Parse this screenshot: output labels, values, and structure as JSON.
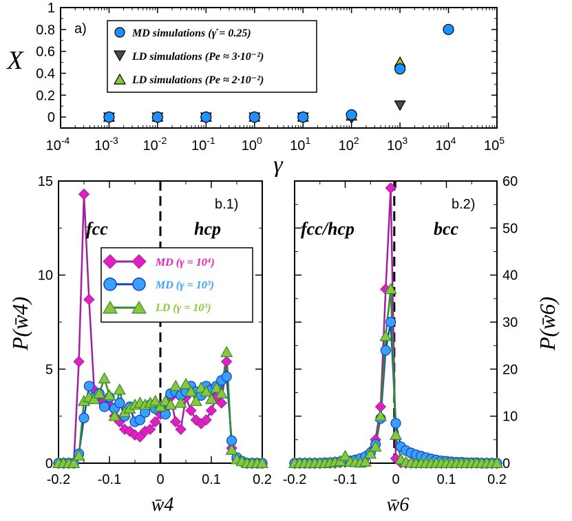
{
  "chart_data": [
    {
      "type": "scatter",
      "panel_label": "a)",
      "ylabel": "X",
      "xlabel": "γ",
      "xscale": "log",
      "xlim": [
        0.0001,
        100000
      ],
      "ylim": [
        -0.1,
        1
      ],
      "yticks": [
        "0",
        "0.2",
        "0.4",
        "0.6",
        "0.8",
        "1"
      ],
      "xticks": [
        {
          "base": "10",
          "exp": "-4"
        },
        {
          "base": "10",
          "exp": "-3"
        },
        {
          "base": "10",
          "exp": "-2"
        },
        {
          "base": "10",
          "exp": "-1"
        },
        {
          "base": "10",
          "exp": "0"
        },
        {
          "base": "10",
          "exp": "1"
        },
        {
          "base": "10",
          "exp": "2"
        },
        {
          "base": "10",
          "exp": "3"
        },
        {
          "base": "10",
          "exp": "4"
        },
        {
          "base": "10",
          "exp": "5"
        }
      ],
      "legend_position": "top-left",
      "series": [
        {
          "name": "MD simulations (γ̇ = 0.25)",
          "marker": "circle",
          "color": "#1e90ff",
          "x": [
            0.001,
            0.01,
            0.1,
            1,
            10,
            100,
            1000,
            10000
          ],
          "y": [
            0,
            0,
            0,
            0,
            0,
            0.02,
            0.44,
            0.8
          ]
        },
        {
          "name": "LD simulations (Pe ≈ 3·10⁻²)",
          "marker": "triangle-down",
          "color": "#4a4a4a",
          "x": [
            0.001,
            0.01,
            0.1,
            1,
            10,
            100,
            1000
          ],
          "y": [
            0,
            0,
            0,
            0,
            0,
            -0.01,
            0.11
          ]
        },
        {
          "name": "LD simulations (Pe ≈ 2·10⁻²)",
          "marker": "triangle-up",
          "color": "#8cc63f",
          "x": [
            0.001,
            0.01,
            0.1,
            1,
            10,
            100,
            1000
          ],
          "y": [
            0,
            0,
            0,
            0,
            0,
            0.01,
            0.5
          ]
        }
      ]
    },
    {
      "type": "line",
      "panel_label": "b.1)",
      "xlabel": "w̄4",
      "ylabel": "P(w̄4)",
      "xlim": [
        -0.2,
        0.2
      ],
      "ylim": [
        0,
        15
      ],
      "xticks": [
        "-0.2",
        "-0.1",
        "0",
        "0.1",
        "0.2"
      ],
      "yticks": [
        "0",
        "5",
        "10",
        "15"
      ],
      "regions": [
        "fcc",
        "hcp"
      ],
      "divider_x": 0,
      "legend_position": "center-left",
      "x": [
        -0.2,
        -0.19,
        -0.18,
        -0.17,
        -0.16,
        -0.15,
        -0.14,
        -0.13,
        -0.12,
        -0.11,
        -0.1,
        -0.09,
        -0.08,
        -0.07,
        -0.06,
        -0.05,
        -0.04,
        -0.03,
        -0.02,
        -0.01,
        0,
        0.01,
        0.02,
        0.03,
        0.04,
        0.05,
        0.06,
        0.07,
        0.08,
        0.09,
        0.1,
        0.11,
        0.12,
        0.13,
        0.14,
        0.15,
        0.16,
        0.17,
        0.18,
        0.19,
        0.2
      ],
      "series": [
        {
          "name": "MD (γ = 10⁴)",
          "marker": "diamond",
          "color": "#e020c0",
          "values": [
            0,
            0,
            0,
            0,
            5.4,
            14.3,
            8.7,
            3.9,
            3.4,
            3.3,
            3.1,
            2.5,
            2.2,
            1.8,
            1.7,
            1.5,
            1.4,
            1.7,
            1.8,
            2.2,
            2.6,
            2.9,
            3.5,
            2.2,
            1.8,
            3.5,
            2.8,
            2.3,
            2.1,
            2.3,
            2.8,
            3.5,
            3.2,
            5.4,
            0.8,
            0.2,
            0.1,
            0,
            0,
            0,
            0
          ]
        },
        {
          "name": "MD (γ = 10³)",
          "marker": "circle",
          "color": "#3aa0ff",
          "values": [
            0,
            0,
            0,
            0,
            0.5,
            2.4,
            4.1,
            3.5,
            3.7,
            3.0,
            3.5,
            2.9,
            3.2,
            2.5,
            3.0,
            2.2,
            2.3,
            2.7,
            3.1,
            2.9,
            3.0,
            2.6,
            3.7,
            3.8,
            3.6,
            3.8,
            4.1,
            3.8,
            3.6,
            4.1,
            3.9,
            4.1,
            4.4,
            4.6,
            1.2,
            0.3,
            0.1,
            0,
            0,
            0,
            0
          ]
        },
        {
          "name": "LD (γ = 10³)",
          "marker": "triangle-up",
          "color": "#8cc63f",
          "values": [
            0,
            0,
            0,
            0,
            0.4,
            3.3,
            3.5,
            3.4,
            3.7,
            4.5,
            3.6,
            2.5,
            3.9,
            2.7,
            2.9,
            3.1,
            3.2,
            3.1,
            3.2,
            3.3,
            3.0,
            3.3,
            3.1,
            4.1,
            3.2,
            4.2,
            3.8,
            3.3,
            4.0,
            3.8,
            3.4,
            4.0,
            3.7,
            5.9,
            0.7,
            0.2,
            0.1,
            0,
            0,
            0,
            0
          ]
        }
      ]
    },
    {
      "type": "line",
      "panel_label": "b.2)",
      "xlabel": "w̄6",
      "ylabel": "P(w̄6)",
      "xlim": [
        -0.2,
        0.2
      ],
      "ylim": [
        0,
        60
      ],
      "xticks": [
        "-0.2",
        "-0.1",
        "0",
        "0.1",
        "0.2"
      ],
      "yticks": [
        "0",
        "10",
        "20",
        "30",
        "40",
        "50",
        "60"
      ],
      "regions": [
        "fcc/hcp",
        "bcc"
      ],
      "divider_x": -0.003,
      "x": [
        -0.2,
        -0.19,
        -0.18,
        -0.17,
        -0.16,
        -0.15,
        -0.14,
        -0.13,
        -0.12,
        -0.11,
        -0.1,
        -0.09,
        -0.08,
        -0.07,
        -0.06,
        -0.05,
        -0.04,
        -0.03,
        -0.02,
        -0.01,
        0,
        0.01,
        0.02,
        0.03,
        0.04,
        0.05,
        0.06,
        0.07,
        0.08,
        0.09,
        0.1,
        0.11,
        0.12,
        0.13,
        0.14,
        0.15,
        0.16,
        0.17,
        0.18,
        0.19,
        0.2
      ],
      "series": [
        {
          "name": "MD (γ = 10⁴)",
          "marker": "diamond",
          "color": "#e020c0",
          "values": [
            0,
            0,
            0,
            0,
            0,
            0,
            0,
            0,
            0,
            0.1,
            0.2,
            0.3,
            0.5,
            0.8,
            1.3,
            2.5,
            5.0,
            12.0,
            37.0,
            58.5,
            1.0,
            0.1,
            0,
            0,
            0,
            0,
            0,
            0,
            0,
            0,
            0,
            0,
            0,
            0,
            0,
            0,
            0,
            0,
            0,
            0,
            0
          ]
        },
        {
          "name": "MD (γ = 10³)",
          "marker": "circle",
          "color": "#3aa0ff",
          "values": [
            0,
            0,
            0,
            0,
            0,
            0,
            0.1,
            0.1,
            0.2,
            0.3,
            0.4,
            0.5,
            0.7,
            1.0,
            1.4,
            2.2,
            4.0,
            9.5,
            24.0,
            30.0,
            8.5,
            3.5,
            2.7,
            2.2,
            1.8,
            1.5,
            1.2,
            0.9,
            0.7,
            0.5,
            0.4,
            0.3,
            0.2,
            0.2,
            0.1,
            0.1,
            0.1,
            0,
            0,
            0,
            0
          ]
        },
        {
          "name": "LD (γ = 10³)",
          "marker": "triangle-up",
          "color": "#8cc63f",
          "values": [
            0,
            0,
            0,
            0,
            0,
            0,
            0,
            0.1,
            0.2,
            0.4,
            1.5,
            0.3,
            0.2,
            0.1,
            0.3,
            2.0,
            3.5,
            10.0,
            27.0,
            37.0,
            6.0,
            0.8,
            0.2,
            0.1,
            0,
            0,
            0,
            0,
            0,
            0,
            0,
            0,
            0,
            0,
            0,
            0,
            0,
            0,
            0,
            0,
            0
          ]
        }
      ]
    }
  ]
}
